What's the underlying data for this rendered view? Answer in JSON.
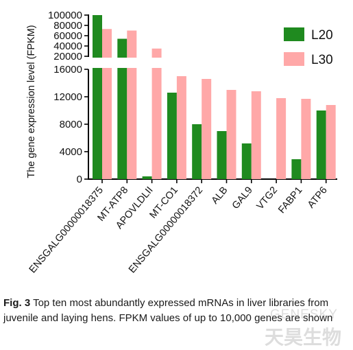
{
  "chart_data": {
    "type": "bar",
    "ylabel": "The gene expression level  (FPKM)",
    "categories": [
      "ENSGALG00000018375",
      "MT-ATP8",
      "APOVLDLII",
      "MT-CO1",
      "ENSGALG00000018372",
      "ALB",
      "GAL9",
      "VTG2",
      "FABP1",
      "ATP6"
    ],
    "series": [
      {
        "name": "L20",
        "color": "#1f8a1f",
        "values": [
          100000,
          54000,
          400,
          12600,
          8000,
          7000,
          5200,
          0,
          2900,
          10000
        ]
      },
      {
        "name": "L30",
        "color": "#ffa8a8",
        "values": [
          73000,
          70000,
          35000,
          15000,
          14600,
          13000,
          12800,
          11800,
          11700,
          10800
        ]
      }
    ],
    "axis": {
      "lower": {
        "range": [
          0,
          16000
        ],
        "ticks": [
          0,
          4000,
          8000,
          12000,
          16000
        ]
      },
      "upper": {
        "range": [
          20000,
          100000
        ],
        "ticks": [
          20000,
          40000,
          60000,
          80000,
          100000
        ]
      }
    },
    "legend_position": "top-right",
    "grid": false
  },
  "caption": {
    "label": "Fig. 3",
    "text": " Top ten most abundantly expressed mRNAs in liver libraries from juvenile and laying hens. FPKM values of up to 10,000 genes are shown"
  },
  "watermark": {
    "en": "GENESKY",
    "cn": "天昊生物"
  }
}
